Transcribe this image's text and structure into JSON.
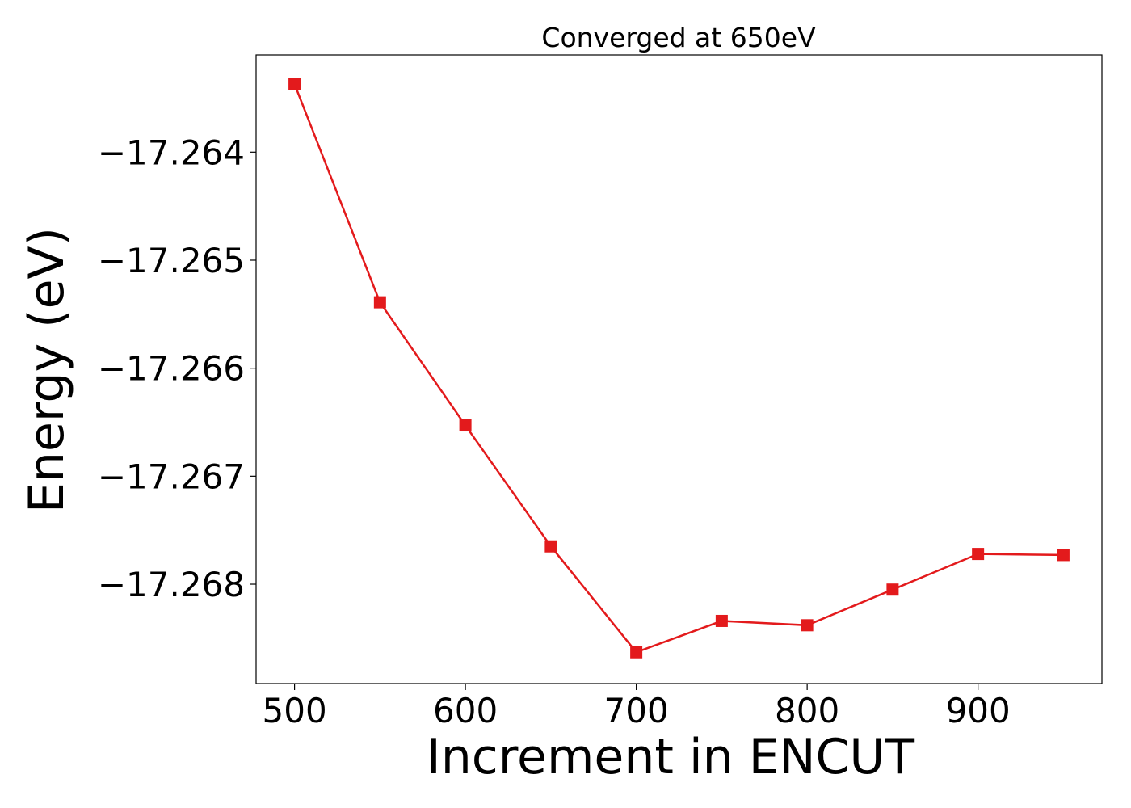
{
  "chart_data": {
    "type": "line",
    "title": "Converged at 650eV",
    "xlabel": "Increment in ENCUT",
    "ylabel": "Energy (eV)",
    "x": [
      500,
      550,
      600,
      650,
      700,
      750,
      800,
      850,
      900,
      950
    ],
    "series": [
      {
        "values": [
          -17.26337,
          -17.26539,
          -17.26653,
          -17.26765,
          -17.26863,
          -17.26834,
          -17.26838,
          -17.26805,
          -17.26772,
          -17.26773
        ],
        "color": "#e31a1c",
        "marker": "square"
      }
    ],
    "xlim": [
      477.5,
      972.5
    ],
    "ylim": [
      -17.26892,
      -17.2631
    ],
    "xticks": [
      500,
      600,
      700,
      800,
      900
    ],
    "xtick_labels": [
      "500",
      "600",
      "700",
      "800",
      "900"
    ],
    "yticks": [
      -17.264,
      -17.265,
      -17.266,
      -17.267,
      -17.268
    ],
    "ytick_labels": [
      "−17.264",
      "−17.265",
      "−17.266",
      "−17.267",
      "−17.268"
    ],
    "grid": false,
    "legend": "none"
  }
}
